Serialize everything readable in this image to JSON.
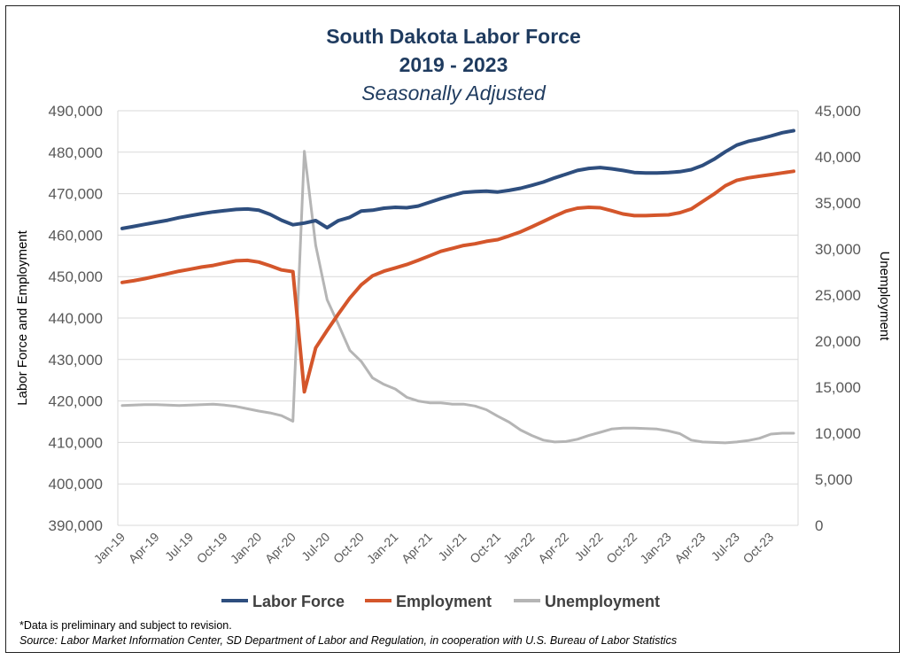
{
  "title": "South Dakota Labor Force",
  "subtitle_years": "2019 - 2023",
  "subtitle_adjust": "Seasonally Adjusted",
  "footnote": "*Data is preliminary and subject to revision.",
  "source": "Source: Labor Market Information Center, SD Department of Labor and Regulation, in cooperation with U.S. Bureau of Labor Statistics",
  "chart_data": {
    "type": "line",
    "title": "South Dakota Labor Force",
    "ylabel_left": "Labor  Force and Employment",
    "ylabel_right": "Unemployment",
    "ylim_left": [
      390000,
      490000
    ],
    "ylim_right": [
      0,
      45000
    ],
    "yticks_left": [
      "390,000",
      "400,000",
      "410,000",
      "420,000",
      "430,000",
      "440,000",
      "450,000",
      "460,000",
      "470,000",
      "480,000",
      "490,000"
    ],
    "yticks_right": [
      "0",
      "5,000",
      "10,000",
      "15,000",
      "20,000",
      "25,000",
      "30,000",
      "35,000",
      "40,000",
      "45,000"
    ],
    "grid": true,
    "legend_position": "bottom",
    "x_tick_labels": [
      "Jan-19",
      "Apr-19",
      "Jul-19",
      "Oct-19",
      "Jan-20",
      "Apr-20",
      "Jul-20",
      "Oct-20",
      "Jan-21",
      "Apr-21",
      "Jul-21",
      "Oct-21",
      "Jan-22",
      "Apr-22",
      "Jul-22",
      "Oct-22",
      "Jan-23",
      "Apr-23",
      "Jul-23",
      "Oct-23"
    ],
    "x": [
      "Jan-19",
      "Feb-19",
      "Mar-19",
      "Apr-19",
      "May-19",
      "Jun-19",
      "Jul-19",
      "Aug-19",
      "Sep-19",
      "Oct-19",
      "Nov-19",
      "Dec-19",
      "Jan-20",
      "Feb-20",
      "Mar-20",
      "Apr-20",
      "May-20",
      "Jun-20",
      "Jul-20",
      "Aug-20",
      "Sep-20",
      "Oct-20",
      "Nov-20",
      "Dec-20",
      "Jan-21",
      "Feb-21",
      "Mar-21",
      "Apr-21",
      "May-21",
      "Jun-21",
      "Jul-21",
      "Aug-21",
      "Sep-21",
      "Oct-21",
      "Nov-21",
      "Dec-21",
      "Jan-22",
      "Feb-22",
      "Mar-22",
      "Apr-22",
      "May-22",
      "Jun-22",
      "Jul-22",
      "Aug-22",
      "Sep-22",
      "Oct-22",
      "Nov-22",
      "Dec-22",
      "Jan-23",
      "Feb-23",
      "Mar-23",
      "Apr-23",
      "May-23",
      "Jun-23",
      "Jul-23",
      "Aug-23",
      "Sep-23",
      "Oct-23",
      "Nov-23",
      "Dec-23"
    ],
    "series": [
      {
        "name": "Labor Force",
        "axis": "left",
        "color": "#2e4e7e",
        "values": [
          461600,
          462100,
          462600,
          463100,
          463600,
          464200,
          464700,
          465200,
          465600,
          465900,
          466200,
          466300,
          466000,
          465000,
          463600,
          462500,
          462900,
          463500,
          461800,
          463500,
          464300,
          465800,
          466000,
          466500,
          466700,
          466600,
          467000,
          467900,
          468800,
          469600,
          470300,
          470500,
          470600,
          470400,
          470800,
          471300,
          472000,
          472800,
          473800,
          474700,
          475600,
          476100,
          476300,
          476000,
          475600,
          475100,
          475000,
          475000,
          475100,
          475300,
          475800,
          476800,
          478300,
          480100,
          481700,
          482600,
          483200,
          483900,
          484700,
          485200
        ]
      },
      {
        "name": "Employment",
        "axis": "left",
        "color": "#d4562b",
        "values": [
          448600,
          449000,
          449500,
          450100,
          450700,
          451300,
          451800,
          452300,
          452700,
          453300,
          453800,
          453900,
          453500,
          452600,
          451600,
          451200,
          422200,
          432800,
          437000,
          441000,
          444800,
          448000,
          450200,
          451300,
          452100,
          452900,
          453900,
          455000,
          456100,
          456800,
          457500,
          457900,
          458500,
          458900,
          459800,
          460800,
          462000,
          463300,
          464600,
          465800,
          466500,
          466700,
          466600,
          465900,
          465100,
          464700,
          464700,
          464800,
          464900,
          465400,
          466300,
          468100,
          469900,
          471900,
          473200,
          473800,
          474200,
          474600,
          475000,
          475400
        ]
      },
      {
        "name": "Unemployment",
        "axis": "right",
        "color": "#b5b5b5",
        "values": [
          13000,
          13050,
          13100,
          13100,
          13050,
          13000,
          13050,
          13100,
          13150,
          13050,
          12900,
          12650,
          12400,
          12200,
          11900,
          11300,
          40600,
          30400,
          24500,
          21800,
          19000,
          17800,
          16000,
          15300,
          14800,
          13900,
          13500,
          13300,
          13300,
          13150,
          13150,
          12950,
          12550,
          11850,
          11200,
          10350,
          9750,
          9250,
          9050,
          9100,
          9350,
          9750,
          10100,
          10450,
          10550,
          10550,
          10500,
          10450,
          10250,
          9950,
          9250,
          9050,
          9000,
          8950,
          9050,
          9200,
          9450,
          9900,
          10000,
          10000
        ]
      }
    ]
  }
}
